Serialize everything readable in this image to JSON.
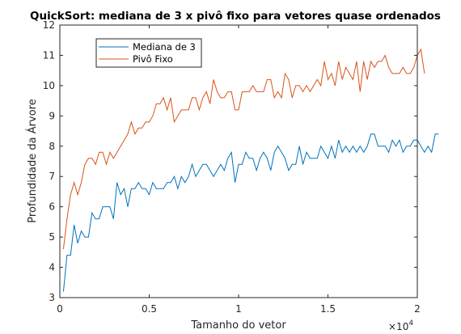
{
  "chart_data": {
    "type": "line",
    "title": "QuickSort: mediana de 3 x pivô fixo para vetores quase ordenados",
    "xlabel": "Tamanho do vetor",
    "ylabel": "Profundidade da Árvore",
    "x_multiplier": "×10",
    "x_multiplier_exp": "4",
    "xlim": [
      0,
      20000
    ],
    "ylim": [
      3,
      12
    ],
    "xticks": [
      0,
      5000,
      10000,
      15000,
      20000
    ],
    "xtick_labels": [
      "0",
      "0.5",
      "1",
      "1.5",
      "2"
    ],
    "yticks": [
      3,
      4,
      5,
      6,
      7,
      8,
      9,
      10,
      11,
      12
    ],
    "grid": false,
    "legend_position": "top-left",
    "x_start": 200,
    "x_step": 200,
    "series": [
      {
        "name": "Mediana de 3",
        "color": "#0072BD",
        "values": [
          3.2,
          4.4,
          4.4,
          5.4,
          4.8,
          5.2,
          5.0,
          5.0,
          5.8,
          5.6,
          5.6,
          6.0,
          6.0,
          6.0,
          5.6,
          6.8,
          6.4,
          6.6,
          6.0,
          6.6,
          6.6,
          6.8,
          6.6,
          6.6,
          6.4,
          6.8,
          6.6,
          6.6,
          6.6,
          6.8,
          6.8,
          7.0,
          6.6,
          7.0,
          6.8,
          7.0,
          7.4,
          7.0,
          7.2,
          7.4,
          7.4,
          7.2,
          7.0,
          7.2,
          7.4,
          7.2,
          7.6,
          7.8,
          6.8,
          7.4,
          7.4,
          7.8,
          7.6,
          7.6,
          7.2,
          7.6,
          7.8,
          7.6,
          7.2,
          7.8,
          8.0,
          7.8,
          7.6,
          7.2,
          7.4,
          7.4,
          8.0,
          7.4,
          7.8,
          7.6,
          7.6,
          7.6,
          8.0,
          7.8,
          7.6,
          8.0,
          7.6,
          8.2,
          7.8,
          8.0,
          7.8,
          8.0,
          7.8,
          8.0,
          7.8,
          8.0,
          8.4,
          8.4,
          8.0,
          8.0,
          8.0,
          7.8,
          8.2,
          8.0,
          8.2,
          7.8,
          8.0,
          8.0,
          8.2,
          8.2,
          8.0,
          7.8,
          8.0,
          7.8,
          8.4,
          8.4
        ]
      },
      {
        "name": "Pivô Fixo",
        "color": "#D95319",
        "values": [
          4.6,
          5.6,
          6.4,
          6.8,
          6.4,
          6.8,
          7.4,
          7.6,
          7.6,
          7.4,
          7.8,
          7.8,
          7.4,
          7.8,
          7.6,
          7.8,
          8.0,
          8.2,
          8.4,
          8.8,
          8.4,
          8.6,
          8.6,
          8.8,
          8.8,
          9.0,
          9.4,
          9.4,
          9.6,
          9.2,
          9.6,
          8.8,
          9.0,
          9.2,
          9.2,
          9.2,
          9.6,
          9.6,
          9.2,
          9.6,
          9.8,
          9.4,
          10.2,
          9.8,
          9.6,
          9.6,
          9.8,
          9.8,
          9.2,
          9.2,
          9.8,
          9.8,
          9.8,
          10.0,
          9.8,
          9.8,
          9.8,
          10.2,
          10.2,
          9.6,
          9.8,
          9.6,
          10.4,
          10.2,
          9.6,
          10.0,
          10.0,
          9.8,
          10.0,
          9.8,
          10.0,
          10.2,
          10.0,
          10.8,
          10.2,
          10.4,
          10.0,
          10.8,
          10.2,
          10.6,
          10.4,
          10.2,
          10.8,
          9.8,
          10.8,
          10.2,
          10.8,
          10.6,
          10.8,
          10.8,
          11.0,
          10.6,
          10.4,
          10.4,
          10.4,
          10.6,
          10.4,
          10.4,
          10.6,
          11.0,
          11.2,
          10.4
        ]
      }
    ]
  }
}
